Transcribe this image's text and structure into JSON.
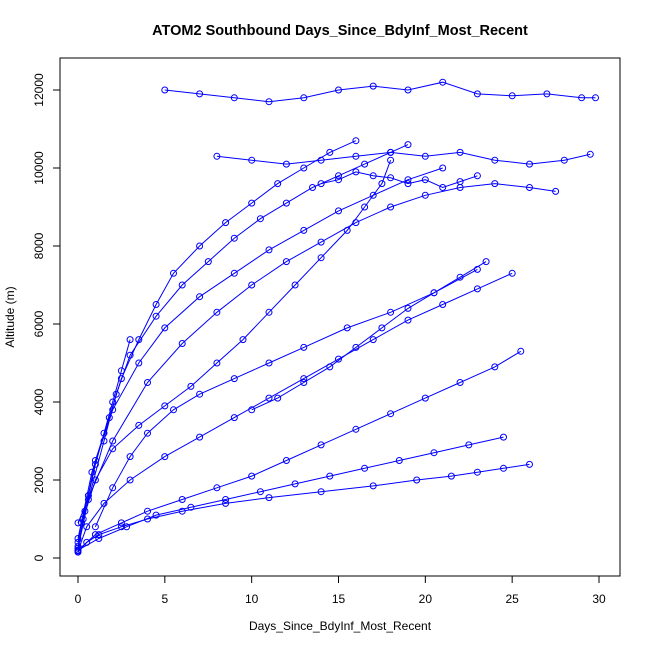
{
  "chart_data": {
    "type": "line",
    "title": "ATOM2 Southbound Days_Since_BdyInf_Most_Recent",
    "xlabel": "Days_Since_BdyInf_Most_Recent",
    "ylabel": "Altitude (m)",
    "xlim": [
      0,
      30
    ],
    "ylim": [
      0,
      12500
    ],
    "xticks": [
      "0",
      "5",
      "10",
      "15",
      "20",
      "25",
      "30"
    ],
    "yticks": [
      "0",
      "2000",
      "4000",
      "6000",
      "8000",
      "10000",
      "12000"
    ],
    "grid": false,
    "legend": "none",
    "line_color": "#0000ff",
    "marker": "open-circle",
    "series": [
      {
        "x": [
          0.0,
          0.5,
          1.2,
          2.5,
          4.0,
          6.0,
          8.5,
          11.0,
          14.0,
          17.0,
          19.5,
          21.5,
          23.0,
          24.5,
          26.0
        ],
        "y": [
          150,
          400,
          600,
          800,
          1000,
          1200,
          1400,
          1550,
          1700,
          1850,
          2000,
          2100,
          2200,
          2300,
          2400
        ]
      },
      {
        "x": [
          0.0,
          0.3,
          1.0,
          2.0,
          3.5,
          5.0,
          6.5,
          8.0,
          9.5,
          11.0,
          12.5,
          14.0,
          15.5,
          16.5,
          17.5,
          18.0
        ],
        "y": [
          200,
          1000,
          2000,
          2800,
          3400,
          3900,
          4400,
          5000,
          5600,
          6300,
          7000,
          7700,
          8400,
          9000,
          9600,
          10200
        ]
      },
      {
        "x": [
          0.0,
          0.6,
          1.5,
          2.2,
          3.0,
          4.5,
          6.0,
          7.5,
          9.0,
          10.5,
          12.0,
          13.5,
          15.0,
          16.5,
          18.0,
          19.0
        ],
        "y": [
          250,
          1500,
          3000,
          4200,
          5200,
          6200,
          7000,
          7600,
          8200,
          8700,
          9100,
          9500,
          9800,
          10100,
          10400,
          10600
        ]
      },
      {
        "x": [
          0.0,
          0.4,
          1.0,
          1.8,
          2.5,
          3.5,
          4.5,
          5.5,
          7.0,
          8.5,
          10.0,
          11.5,
          13.0,
          14.5,
          16.0
        ],
        "y": [
          300,
          1200,
          2500,
          3600,
          4600,
          5600,
          6500,
          7300,
          8000,
          8600,
          9100,
          9600,
          10000,
          10400,
          10700
        ]
      },
      {
        "x": [
          0.0,
          1.0,
          2.5,
          4.0,
          6.0,
          8.0,
          10.0,
          12.0,
          14.0,
          16.0,
          18.0,
          20.0,
          22.0,
          24.0,
          25.5
        ],
        "y": [
          200,
          600,
          900,
          1200,
          1500,
          1800,
          2100,
          2500,
          2900,
          3300,
          3700,
          4100,
          4500,
          4900,
          5300
        ]
      },
      {
        "x": [
          0.0,
          0.5,
          1.5,
          3.0,
          5.0,
          7.0,
          9.0,
          11.0,
          13.0,
          15.0,
          17.0,
          19.0,
          21.0,
          23.0,
          25.0
        ],
        "y": [
          180,
          800,
          1400,
          2000,
          2600,
          3100,
          3600,
          4100,
          4600,
          5100,
          5600,
          6100,
          6500,
          6900,
          7300
        ]
      },
      {
        "x": [
          0.0,
          2.0,
          4.0,
          6.0,
          8.0,
          10.0,
          12.0,
          14.0,
          16.0,
          18.0,
          20.0,
          22.0,
          24.0,
          26.0,
          27.5
        ],
        "y": [
          900,
          3000,
          4500,
          5500,
          6300,
          7000,
          7600,
          8100,
          8600,
          9000,
          9300,
          9500,
          9600,
          9500,
          9400
        ]
      },
      {
        "x": [
          5.0,
          7.0,
          9.0,
          11.0,
          13.0,
          15.0,
          17.0,
          19.0,
          21.0,
          23.0,
          25.0,
          27.0,
          29.0,
          29.8
        ],
        "y": [
          12000,
          11900,
          11800,
          11700,
          11800,
          12000,
          12100,
          12000,
          12200,
          11900,
          11850,
          11900,
          11800,
          11800
        ]
      },
      {
        "x": [
          8.0,
          10.0,
          12.0,
          14.0,
          16.0,
          18.0,
          20.0,
          22.0,
          24.0,
          26.0,
          28.0,
          29.5
        ],
        "y": [
          10300,
          10200,
          10100,
          10200,
          10300,
          10400,
          10300,
          10400,
          10200,
          10100,
          10200,
          10350
        ]
      },
      {
        "x": [
          1.0,
          2.0,
          3.0,
          4.0,
          5.5,
          7.0,
          9.0,
          11.0,
          13.0,
          15.5,
          18.0,
          20.5,
          23.0
        ],
        "y": [
          800,
          1800,
          2600,
          3200,
          3800,
          4200,
          4600,
          5000,
          5400,
          5900,
          6300,
          6800,
          7400
        ]
      },
      {
        "x": [
          0.0,
          0.8,
          2.0,
          3.5,
          5.0,
          7.0,
          9.0,
          11.0,
          13.0,
          15.0,
          17.0,
          19.0,
          21.0
        ],
        "y": [
          500,
          2200,
          3800,
          5000,
          5900,
          6700,
          7300,
          7900,
          8400,
          8900,
          9300,
          9700,
          10000
        ]
      },
      {
        "x": [
          0.0,
          1.2,
          2.8,
          4.5,
          6.5,
          8.5,
          10.5,
          12.5,
          14.5,
          16.5,
          18.5,
          20.5,
          22.5,
          24.5
        ],
        "y": [
          200,
          500,
          800,
          1100,
          1300,
          1500,
          1700,
          1900,
          2100,
          2300,
          2500,
          2700,
          2900,
          3100
        ]
      },
      {
        "x": [
          10.0,
          11.5,
          13.0,
          14.5,
          16.0,
          17.5,
          19.0,
          20.5,
          22.0,
          23.5
        ],
        "y": [
          3800,
          4100,
          4500,
          4900,
          5400,
          5900,
          6400,
          6800,
          7200,
          7600
        ]
      },
      {
        "x": [
          0.0,
          0.2,
          0.6,
          1.0,
          1.5,
          2.0,
          2.5,
          3.0
        ],
        "y": [
          400,
          900,
          1600,
          2400,
          3200,
          4000,
          4800,
          5600
        ]
      },
      {
        "x": [
          14.0,
          15.0,
          16.0,
          17.0,
          18.0,
          19.0,
          20.0,
          21.0,
          22.0,
          23.0
        ],
        "y": [
          9600,
          9700,
          9900,
          9800,
          9750,
          9600,
          9700,
          9500,
          9650,
          9800
        ]
      }
    ]
  }
}
